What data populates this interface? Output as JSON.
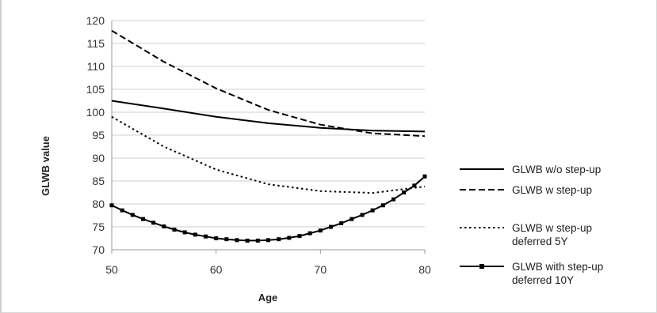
{
  "chart_data": {
    "type": "line",
    "title": "",
    "xlabel": "Age",
    "ylabel": "GLWB value",
    "xlim": [
      50,
      80
    ],
    "ylim": [
      70,
      120
    ],
    "xticks": [
      50,
      60,
      70,
      80
    ],
    "yticks": [
      70,
      75,
      80,
      85,
      90,
      95,
      100,
      105,
      110,
      115,
      120
    ],
    "grid": "horizontal",
    "legend_position": "right",
    "series": [
      {
        "name": "GLWB w/o step-up",
        "style": "solid",
        "color": "#000000",
        "x": [
          50,
          55,
          60,
          65,
          70,
          75,
          80
        ],
        "y": [
          102.5,
          100.8,
          99.0,
          97.6,
          96.6,
          96.0,
          95.8
        ]
      },
      {
        "name": "GLWB w step-up",
        "style": "dashed",
        "color": "#000000",
        "x": [
          50,
          55,
          60,
          65,
          70,
          75,
          80
        ],
        "y": [
          117.8,
          111.0,
          105.2,
          100.5,
          97.3,
          95.4,
          94.8
        ]
      },
      {
        "name": "GLWB w step-up deferred 5Y",
        "style": "dotted",
        "color": "#000000",
        "x": [
          50,
          55,
          60,
          65,
          70,
          75,
          80
        ],
        "y": [
          99.0,
          92.5,
          87.5,
          84.3,
          82.8,
          82.4,
          83.8
        ]
      },
      {
        "name": "GLWB with step-up deferred 10Y",
        "style": "solid-square-markers",
        "color": "#000000",
        "x": [
          50,
          51,
          52,
          53,
          54,
          55,
          56,
          57,
          58,
          59,
          60,
          61,
          62,
          63,
          64,
          65,
          66,
          67,
          68,
          69,
          70,
          71,
          72,
          73,
          74,
          75,
          76,
          77,
          78,
          79,
          80
        ],
        "y": [
          79.7,
          78.6,
          77.6,
          76.7,
          75.9,
          75.1,
          74.4,
          73.8,
          73.3,
          72.9,
          72.5,
          72.3,
          72.1,
          72.0,
          72.0,
          72.1,
          72.3,
          72.6,
          73.0,
          73.6,
          74.2,
          75.0,
          75.8,
          76.7,
          77.6,
          78.6,
          79.7,
          81.0,
          82.5,
          84.0,
          86.0
        ]
      }
    ],
    "legend_lines": [
      [
        "GLWB w/o step-up"
      ],
      [
        "GLWB w step-up"
      ],
      [
        "GLWB w step-up",
        "deferred 5Y"
      ],
      [
        "GLWB with step-up",
        "deferred 10Y"
      ]
    ]
  }
}
